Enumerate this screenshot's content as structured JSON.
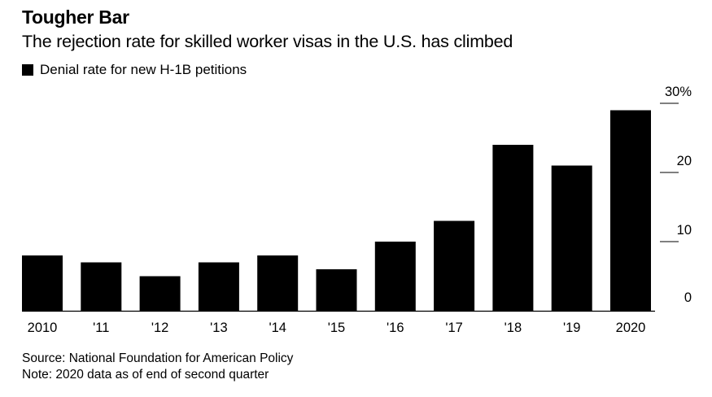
{
  "header": {
    "title": "Tougher Bar",
    "subtitle": "The rejection rate for skilled worker visas in the U.S. has climbed"
  },
  "legend": {
    "label": "Denial rate for new H-1B petitions"
  },
  "footer": {
    "source": "Source: National Foundation for American Policy",
    "note": "Note: 2020 data as of end of second quarter"
  },
  "colors": {
    "bar": "#000000",
    "axis": "#000000"
  },
  "chart_data": {
    "type": "bar",
    "categories": [
      "2010",
      "'11",
      "'12",
      "'13",
      "'14",
      "'15",
      "'16",
      "'17",
      "'18",
      "'19",
      "2020"
    ],
    "series": [
      {
        "name": "Denial rate for new H-1B petitions",
        "values": [
          8,
          7,
          5,
          7,
          8,
          6,
          10,
          13,
          24,
          21,
          29
        ]
      }
    ],
    "y_ticks": [
      0,
      10,
      20,
      30
    ],
    "y_tick_labels": [
      "0",
      "10",
      "20",
      "30%"
    ],
    "ylim": [
      0,
      30
    ],
    "y_axis_position": "right",
    "grid": false,
    "legend_position": "top-left"
  }
}
